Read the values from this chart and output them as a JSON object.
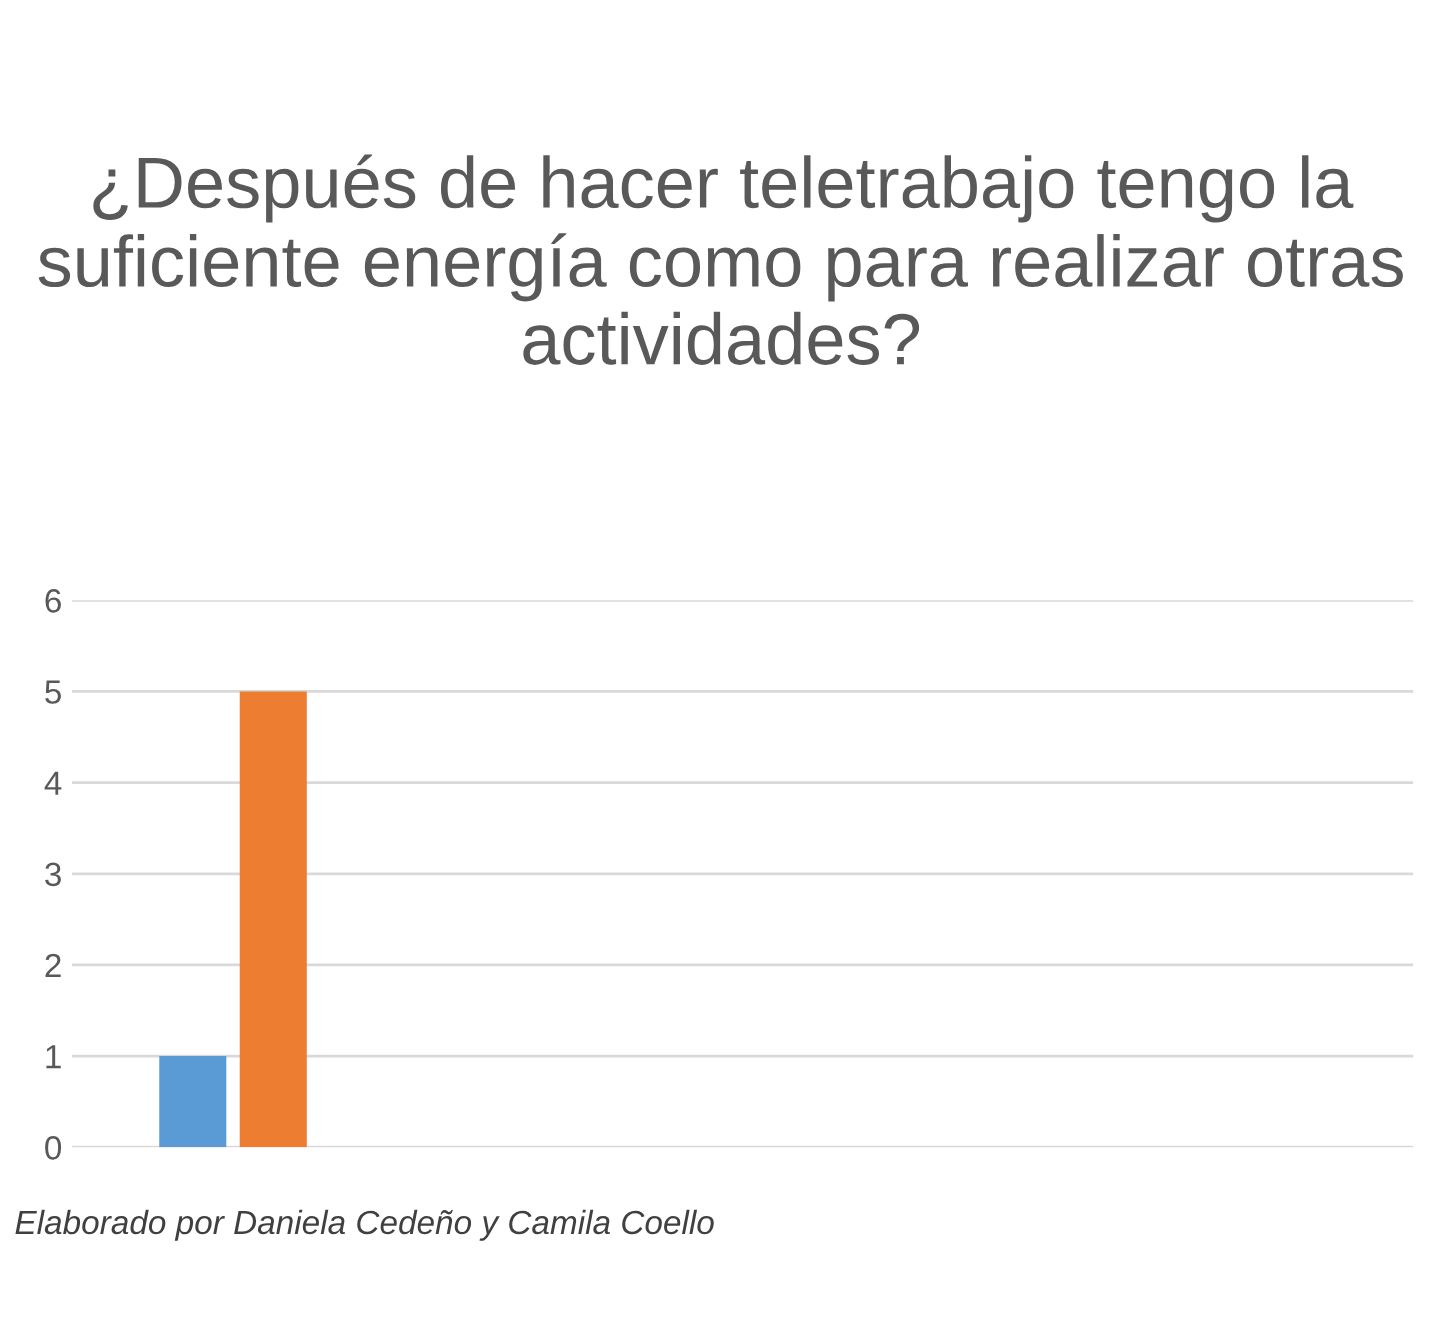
{
  "chart_data": {
    "type": "bar",
    "title": "¿Después de hacer teletrabajo tengo la suficiente energía como para realizar otras actividades?",
    "categories": [
      null
    ],
    "series": [
      {
        "color": "#5b9bd5",
        "values": [
          1
        ]
      },
      {
        "color": "#ed7d31",
        "values": [
          5
        ]
      }
    ],
    "ylim": [
      0,
      6
    ],
    "yticks": [
      0,
      1,
      2,
      3,
      4,
      5,
      6
    ],
    "grid": "y",
    "tick_labels": "y",
    "annotations": [
      "Elaborado por Daniela Cedeño y Camila Coello"
    ]
  }
}
